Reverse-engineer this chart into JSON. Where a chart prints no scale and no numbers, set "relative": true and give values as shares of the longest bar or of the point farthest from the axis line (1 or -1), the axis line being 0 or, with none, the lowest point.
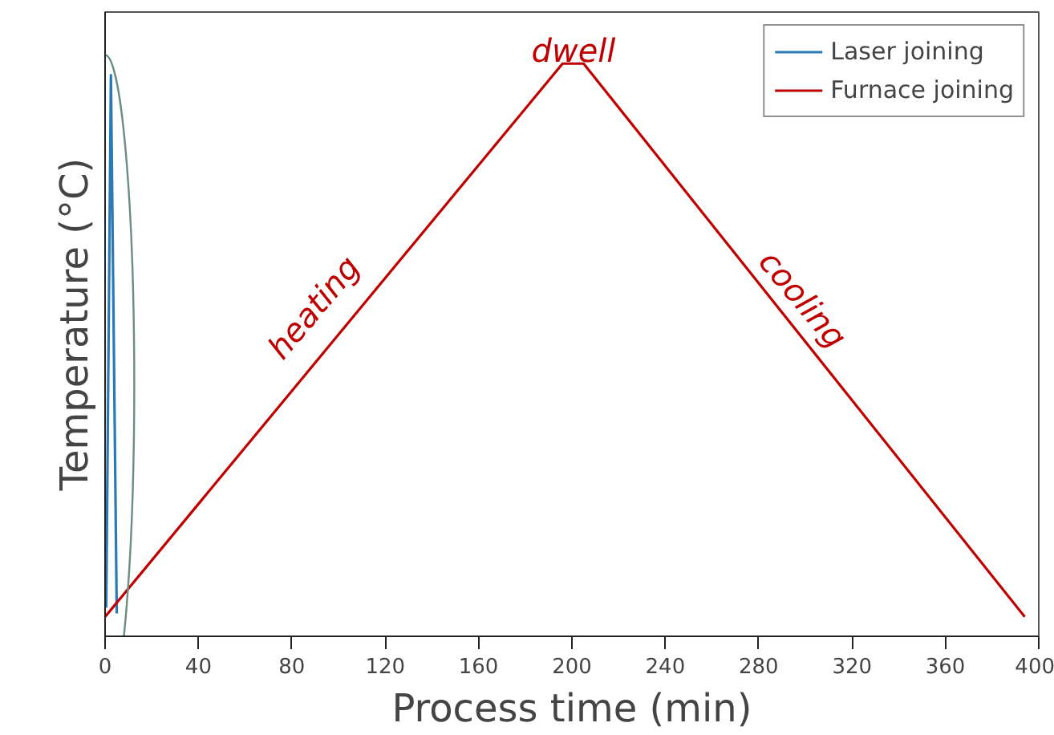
{
  "chart_data": {
    "type": "line",
    "relative": true,
    "xlabel": "Process time (min)",
    "ylabel": "Temperature (°C)",
    "xlim": [
      0,
      400
    ],
    "xticks": [
      0,
      40,
      80,
      120,
      160,
      200,
      240,
      280,
      320,
      360,
      400
    ],
    "series": [
      {
        "name": "Laser joining",
        "color": "#2a7ab8",
        "x": [
          0.5,
          2.5,
          5
        ],
        "values": [
          0.05,
          0.98,
          0.04
        ]
      },
      {
        "name": "Furnace joining",
        "color": "#c00000",
        "x": [
          0,
          196,
          205,
          394
        ],
        "values": [
          0.034,
          1,
          1,
          0.034
        ]
      }
    ],
    "annotations": [
      "heating",
      "dwell",
      "cooling"
    ],
    "legend": "top right",
    "grid": false
  }
}
